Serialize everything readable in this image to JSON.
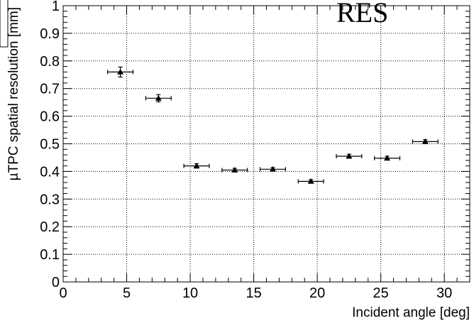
{
  "chart_data": {
    "type": "scatter",
    "title": "RES",
    "xlabel": "Incident angle [deg]",
    "ylabel": "µTPC spatial resolution [mm]",
    "xlim": [
      0,
      32
    ],
    "ylim": [
      0,
      1
    ],
    "grid": true,
    "x_ticks": [
      0,
      5,
      10,
      15,
      20,
      25,
      30
    ],
    "x_tick_labels": [
      "0",
      "5",
      "10",
      "15",
      "20",
      "25",
      "30"
    ],
    "y_ticks": [
      0,
      0.1,
      0.2,
      0.3,
      0.4,
      0.5,
      0.6,
      0.7,
      0.8,
      0.9,
      1
    ],
    "y_tick_labels": [
      "0",
      "0.1",
      "0.2",
      "0.3",
      "0.4",
      "0.5",
      "0.6",
      "0.7",
      "0.8",
      "0.9",
      "1"
    ],
    "series": [
      {
        "marker": "triangle-up",
        "color": "#000000",
        "x": [
          4.5,
          7.5,
          10.5,
          13.5,
          16.5,
          19.5,
          22.5,
          25.5,
          28.5
        ],
        "y": [
          0.76,
          0.665,
          0.42,
          0.405,
          0.408,
          0.364,
          0.455,
          0.448,
          0.508
        ],
        "x_err": [
          1.0,
          1.0,
          1.0,
          1.0,
          1.0,
          1.0,
          1.0,
          1.0,
          1.0
        ],
        "y_err": [
          0.018,
          0.013,
          0.008,
          0.006,
          0.006,
          0.006,
          0.007,
          0.007,
          0.007
        ]
      }
    ]
  }
}
